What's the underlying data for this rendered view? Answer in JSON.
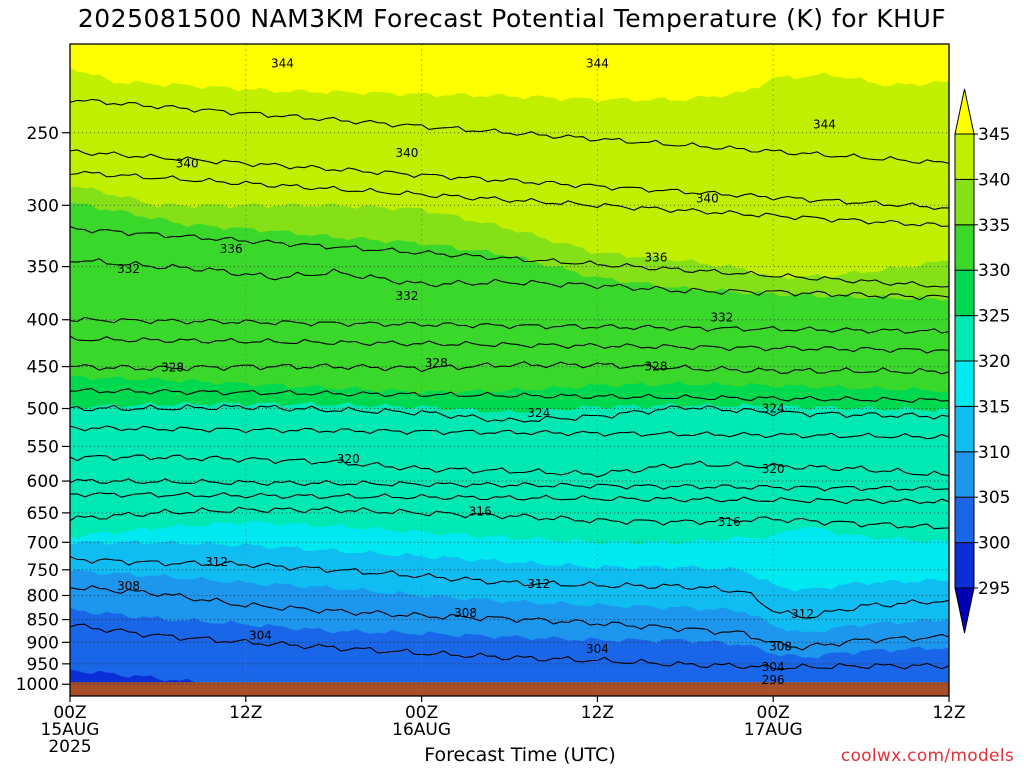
{
  "title": "2025081500 NAM3KM Forecast Potential Temperature (K) for KHUF",
  "credit": "coolwx.com/models",
  "chart_data": {
    "type": "heatmap",
    "title": "2025081500 NAM3KM Forecast Potential Temperature (K) for KHUF",
    "xlabel": "Forecast Time (UTC)",
    "ylabel": "",
    "x_ticks": [
      {
        "hour": 0,
        "lines": [
          "00Z",
          "15AUG",
          "2025"
        ]
      },
      {
        "hour": 12,
        "lines": [
          "12Z"
        ]
      },
      {
        "hour": 24,
        "lines": [
          "00Z",
          "16AUG"
        ]
      },
      {
        "hour": 36,
        "lines": [
          "12Z"
        ]
      },
      {
        "hour": 48,
        "lines": [
          "00Z",
          "17AUG"
        ]
      },
      {
        "hour": 60,
        "lines": [
          "12Z"
        ]
      }
    ],
    "x_range_hours": [
      0,
      60
    ],
    "y_axis": {
      "scale": "log-pressure",
      "unit": "hPa",
      "inverted": true,
      "range": [
        1030,
        200
      ],
      "ticks": [
        250,
        300,
        350,
        400,
        450,
        500,
        550,
        600,
        650,
        700,
        750,
        800,
        850,
        900,
        950,
        1000
      ]
    },
    "grid": true,
    "legend": {
      "placement": "right",
      "unit": "K",
      "labels": [
        "295",
        "300",
        "305",
        "310",
        "315",
        "320",
        "325",
        "330",
        "335",
        "340",
        "345"
      ],
      "colors": [
        "#0000b4",
        "#0a2fd9",
        "#1a66e8",
        "#1d96ee",
        "#10bdf3",
        "#00e8f0",
        "#00e8b4",
        "#00d850",
        "#3ad82a",
        "#86e018",
        "#c0f000",
        "#ffff00"
      ]
    },
    "contour_interval_K": 4,
    "series": [
      {
        "name": "332",
        "values": [
          [
            0,
            344
          ],
          [
            6,
            350
          ],
          [
            9,
            352
          ],
          [
            14,
            360
          ],
          [
            18,
            355
          ],
          [
            24,
            366
          ],
          [
            30,
            364
          ],
          [
            36,
            367
          ],
          [
            42,
            372
          ],
          [
            48,
            373
          ],
          [
            54,
            376
          ],
          [
            60,
            378
          ]
        ]
      },
      {
        "name": "328",
        "values": [
          [
            0,
            450
          ],
          [
            6,
            452
          ],
          [
            12,
            450
          ],
          [
            18,
            450
          ],
          [
            24,
            452
          ],
          [
            30,
            448
          ],
          [
            36,
            448
          ],
          [
            42,
            452
          ],
          [
            48,
            455
          ],
          [
            54,
            455
          ],
          [
            60,
            456
          ]
        ]
      },
      {
        "name": "324",
        "values": [
          [
            0,
            500
          ],
          [
            6,
            500
          ],
          [
            12,
            498
          ],
          [
            18,
            502
          ],
          [
            24,
            505
          ],
          [
            30,
            516
          ],
          [
            36,
            510
          ],
          [
            42,
            498
          ],
          [
            48,
            505
          ],
          [
            54,
            508
          ],
          [
            60,
            510
          ]
        ]
      },
      {
        "name": "320",
        "values": [
          [
            0,
            565
          ],
          [
            6,
            565
          ],
          [
            12,
            568
          ],
          [
            18,
            572
          ],
          [
            24,
            582
          ],
          [
            30,
            585
          ],
          [
            36,
            590
          ],
          [
            42,
            575
          ],
          [
            48,
            578
          ],
          [
            54,
            582
          ],
          [
            60,
            592
          ]
        ]
      },
      {
        "name": "316",
        "values": [
          [
            0,
            660
          ],
          [
            6,
            650
          ],
          [
            12,
            645
          ],
          [
            18,
            645
          ],
          [
            24,
            650
          ],
          [
            30,
            655
          ],
          [
            36,
            663
          ],
          [
            42,
            665
          ],
          [
            48,
            660
          ],
          [
            54,
            668
          ],
          [
            60,
            675
          ]
        ]
      },
      {
        "name": "312",
        "values": [
          [
            0,
            730
          ],
          [
            6,
            737
          ],
          [
            12,
            740
          ],
          [
            18,
            750
          ],
          [
            24,
            762
          ],
          [
            30,
            775
          ],
          [
            36,
            780
          ],
          [
            42,
            782
          ],
          [
            46,
            792
          ],
          [
            48,
            830
          ],
          [
            50,
            846
          ],
          [
            54,
            822
          ],
          [
            60,
            810
          ]
        ]
      },
      {
        "name": "308",
        "values": [
          [
            0,
            783
          ],
          [
            6,
            796
          ],
          [
            12,
            820
          ],
          [
            18,
            832
          ],
          [
            24,
            842
          ],
          [
            30,
            848
          ],
          [
            36,
            858
          ],
          [
            42,
            870
          ],
          [
            46,
            880
          ],
          [
            48,
            902
          ],
          [
            50,
            912
          ],
          [
            54,
            895
          ],
          [
            60,
            888
          ]
        ]
      },
      {
        "name": "304",
        "values": [
          [
            0,
            862
          ],
          [
            6,
            885
          ],
          [
            12,
            900
          ],
          [
            18,
            912
          ],
          [
            24,
            925
          ],
          [
            30,
            935
          ],
          [
            36,
            942
          ],
          [
            42,
            952
          ],
          [
            46,
            955
          ],
          [
            48,
            960
          ],
          [
            54,
            955
          ],
          [
            60,
            955
          ]
        ]
      }
    ],
    "contour_labels": [
      {
        "text": "344",
        "hour": 14.5,
        "p": 210
      },
      {
        "text": "344",
        "hour": 36,
        "p": 210
      },
      {
        "text": "344",
        "hour": 51.5,
        "p": 245
      },
      {
        "text": "340",
        "hour": 8,
        "p": 270
      },
      {
        "text": "340",
        "hour": 23,
        "p": 263
      },
      {
        "text": "340",
        "hour": 43.5,
        "p": 295
      },
      {
        "text": "336",
        "hour": 11,
        "p": 335
      },
      {
        "text": "336",
        "hour": 40,
        "p": 342
      },
      {
        "text": "332",
        "hour": 4,
        "p": 352
      },
      {
        "text": "332",
        "hour": 23,
        "p": 377
      },
      {
        "text": "332",
        "hour": 44.5,
        "p": 398
      },
      {
        "text": "328",
        "hour": 7,
        "p": 451
      },
      {
        "text": "328",
        "hour": 25,
        "p": 446
      },
      {
        "text": "328",
        "hour": 40,
        "p": 450
      },
      {
        "text": "324",
        "hour": 32,
        "p": 506
      },
      {
        "text": "324",
        "hour": 48,
        "p": 500
      },
      {
        "text": "320",
        "hour": 19,
        "p": 568
      },
      {
        "text": "320",
        "hour": 48,
        "p": 582
      },
      {
        "text": "316",
        "hour": 28,
        "p": 648
      },
      {
        "text": "316",
        "hour": 45,
        "p": 665
      },
      {
        "text": "312",
        "hour": 10,
        "p": 735
      },
      {
        "text": "312",
        "hour": 32,
        "p": 777
      },
      {
        "text": "312",
        "hour": 50,
        "p": 838
      },
      {
        "text": "308",
        "hour": 4,
        "p": 781
      },
      {
        "text": "308",
        "hour": 27,
        "p": 836
      },
      {
        "text": "308",
        "hour": 48.5,
        "p": 910
      },
      {
        "text": "304",
        "hour": 13,
        "p": 885
      },
      {
        "text": "304",
        "hour": 36,
        "p": 915
      },
      {
        "text": "304",
        "hour": 48,
        "p": 958
      },
      {
        "text": "296",
        "hour": 48,
        "p": 990
      }
    ],
    "fill_layers": [
      {
        "color": "#c0f000",
        "values": [
          [
            0,
            212
          ],
          [
            3,
            220
          ],
          [
            8,
            222
          ],
          [
            14,
            225
          ],
          [
            20,
            226
          ],
          [
            24,
            227
          ],
          [
            30,
            228
          ],
          [
            36,
            230
          ],
          [
            42,
            230
          ],
          [
            46,
            226
          ],
          [
            48,
            218
          ],
          [
            52,
            216
          ],
          [
            56,
            222
          ],
          [
            60,
            220
          ]
        ]
      },
      {
        "color": "#86e018",
        "values": [
          [
            0,
            285
          ],
          [
            3,
            292
          ],
          [
            6,
            300
          ],
          [
            12,
            300
          ],
          [
            18,
            300
          ],
          [
            24,
            303
          ],
          [
            30,
            318
          ],
          [
            36,
            338
          ],
          [
            42,
            345
          ],
          [
            46,
            352
          ],
          [
            48,
            360
          ],
          [
            52,
            358
          ],
          [
            56,
            352
          ],
          [
            60,
            345
          ]
        ]
      },
      {
        "color": "#3ad82a",
        "values": [
          [
            0,
            298
          ],
          [
            4,
            306
          ],
          [
            8,
            315
          ],
          [
            14,
            320
          ],
          [
            18,
            325
          ],
          [
            24,
            330
          ],
          [
            30,
            340
          ],
          [
            36,
            360
          ],
          [
            42,
            370
          ],
          [
            48,
            375
          ],
          [
            54,
            378
          ],
          [
            60,
            380
          ]
        ]
      },
      {
        "color": "#00d850",
        "values": [
          [
            0,
            462
          ],
          [
            6,
            465
          ],
          [
            12,
            470
          ],
          [
            18,
            475
          ],
          [
            24,
            480
          ],
          [
            30,
            478
          ],
          [
            36,
            472
          ],
          [
            42,
            470
          ],
          [
            48,
            472
          ],
          [
            54,
            475
          ],
          [
            60,
            478
          ]
        ]
      },
      {
        "color": "#00e8b4",
        "values": [
          [
            0,
            498
          ],
          [
            6,
            495
          ],
          [
            12,
            494
          ],
          [
            18,
            495
          ],
          [
            24,
            498
          ],
          [
            30,
            505
          ],
          [
            36,
            498
          ],
          [
            42,
            496
          ],
          [
            48,
            497
          ],
          [
            54,
            500
          ],
          [
            60,
            502
          ]
        ]
      },
      {
        "color": "#00e8f0",
        "values": [
          [
            0,
            690
          ],
          [
            6,
            675
          ],
          [
            12,
            665
          ],
          [
            18,
            672
          ],
          [
            24,
            682
          ],
          [
            30,
            692
          ],
          [
            36,
            700
          ],
          [
            42,
            700
          ],
          [
            46,
            692
          ],
          [
            48,
            690
          ],
          [
            50,
            672
          ],
          [
            54,
            690
          ],
          [
            60,
            700
          ]
        ]
      },
      {
        "color": "#10bdf3",
        "values": [
          [
            0,
            700
          ],
          [
            6,
            700
          ],
          [
            12,
            705
          ],
          [
            18,
            715
          ],
          [
            24,
            725
          ],
          [
            30,
            735
          ],
          [
            36,
            745
          ],
          [
            42,
            745
          ],
          [
            46,
            750
          ],
          [
            48,
            780
          ],
          [
            50,
            790
          ],
          [
            54,
            775
          ],
          [
            60,
            770
          ]
        ]
      },
      {
        "color": "#1d96ee",
        "values": [
          [
            0,
            752
          ],
          [
            6,
            762
          ],
          [
            12,
            775
          ],
          [
            18,
            785
          ],
          [
            24,
            800
          ],
          [
            30,
            812
          ],
          [
            36,
            820
          ],
          [
            42,
            825
          ],
          [
            46,
            832
          ],
          [
            48,
            862
          ],
          [
            50,
            880
          ],
          [
            54,
            860
          ],
          [
            60,
            850
          ]
        ]
      },
      {
        "color": "#1a66e8",
        "values": [
          [
            0,
            830
          ],
          [
            6,
            848
          ],
          [
            12,
            860
          ],
          [
            18,
            875
          ],
          [
            24,
            880
          ],
          [
            30,
            888
          ],
          [
            36,
            895
          ],
          [
            42,
            895
          ],
          [
            46,
            905
          ],
          [
            48,
            925
          ],
          [
            50,
            935
          ],
          [
            54,
            920
          ],
          [
            60,
            912
          ]
        ]
      },
      {
        "color": "#0a2fd9",
        "values": [
          [
            0,
            965
          ],
          [
            6,
            985
          ],
          [
            12,
            1008
          ],
          [
            18,
            1012
          ],
          [
            24,
            1012
          ],
          [
            30,
            1010
          ],
          [
            36,
            1008
          ],
          [
            42,
            1010
          ],
          [
            48,
            1010
          ],
          [
            54,
            1012
          ],
          [
            60,
            1012
          ]
        ]
      }
    ],
    "ground": {
      "color": "#a84f28",
      "pressure_top": 1000
    }
  }
}
